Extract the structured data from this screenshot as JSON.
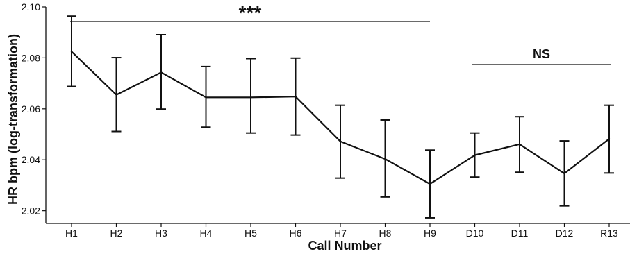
{
  "chart_data": {
    "type": "line",
    "xlabel": "Call Number",
    "ylabel": "HR bpm (log-transformation)",
    "categories": [
      "H1",
      "H2",
      "H3",
      "H4",
      "H5",
      "H6",
      "H7",
      "H8",
      "H9",
      "D10",
      "D11",
      "D12",
      "R13"
    ],
    "series": [
      {
        "values": [
          2.0825,
          2.0655,
          2.0743,
          2.0645,
          2.0645,
          2.0648,
          2.0472,
          2.0403,
          2.0305,
          2.0418,
          2.0461,
          2.0346,
          2.0482
        ],
        "err_upper": [
          2.0964,
          2.0801,
          2.0891,
          2.0766,
          2.0797,
          2.0799,
          2.0614,
          2.0556,
          2.0438,
          2.0505,
          2.0569,
          2.0474,
          2.0614
        ],
        "err_lower": [
          2.0688,
          2.0511,
          2.0599,
          2.0528,
          2.0505,
          2.0497,
          2.0328,
          2.0254,
          2.0172,
          2.0332,
          2.0351,
          2.0219,
          2.0348
        ]
      }
    ],
    "ylim": [
      2.015,
      2.1
    ],
    "yticks": [
      2.02,
      2.04,
      2.06,
      2.08,
      2.1
    ],
    "ytick_labels": [
      "2.02",
      "2.04",
      "2.06",
      "2.08",
      "2.10"
    ],
    "annotations": [
      {
        "text": "***",
        "from": "H1",
        "to": "H9"
      },
      {
        "text": "NS",
        "from": "D10",
        "to": "R13"
      }
    ],
    "grid": false
  }
}
